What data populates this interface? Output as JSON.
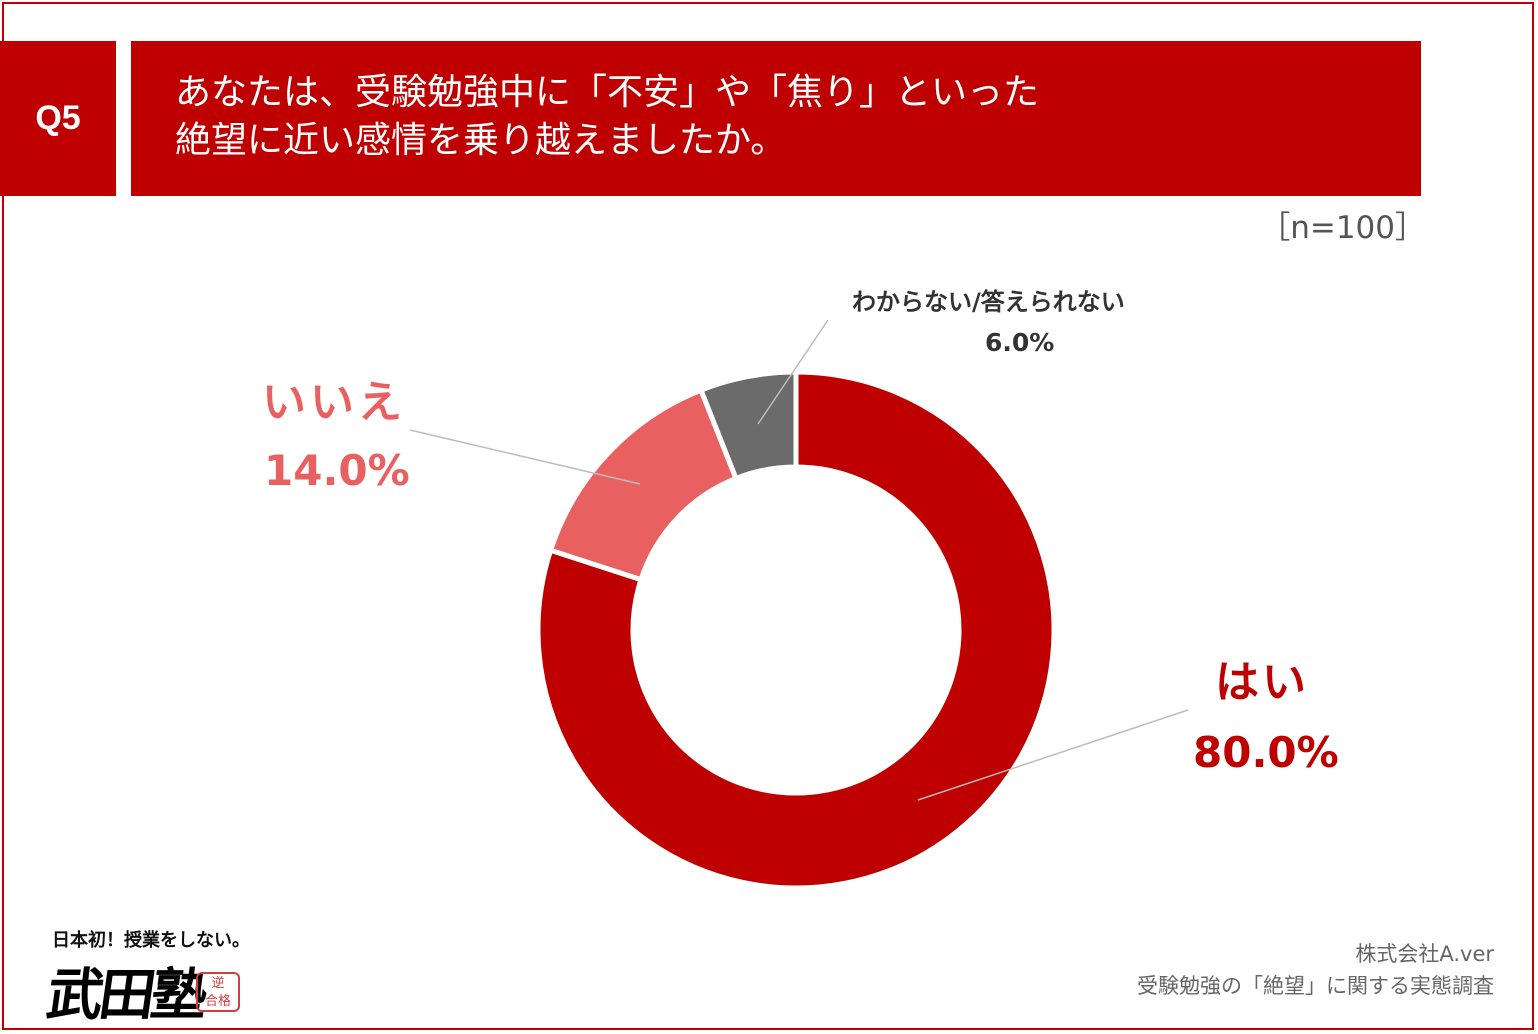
{
  "header": {
    "question_no": "Q5",
    "title_line1": "あなたは、受験勉強中に「不安」や「焦り」といった",
    "title_line2": "絶望に近い感情を乗り越えましたか。",
    "sample_size": "［n=100］"
  },
  "chart_data": {
    "type": "pie",
    "donut": true,
    "title": "あなたは、受験勉強中に「不安」や「焦り」といった絶望に近い感情を乗り越えましたか。",
    "categories": [
      "はい",
      "いいえ",
      "わからない/答えられない"
    ],
    "values": [
      80.0,
      14.0,
      6.0
    ],
    "value_labels": [
      "80.0%",
      "14.0%",
      "6.0%"
    ],
    "colors": [
      "#bf0000",
      "#e86060",
      "#6b6b6b"
    ],
    "legend": "none"
  },
  "logo": {
    "tagline": "日本初！授業をしない。",
    "name": "武田塾",
    "stamp_line1": "逆",
    "stamp_line2": "合格"
  },
  "credit": {
    "company": "株式会社A.ver",
    "survey": "受験勉強の「絶望」に関する実態調査"
  }
}
